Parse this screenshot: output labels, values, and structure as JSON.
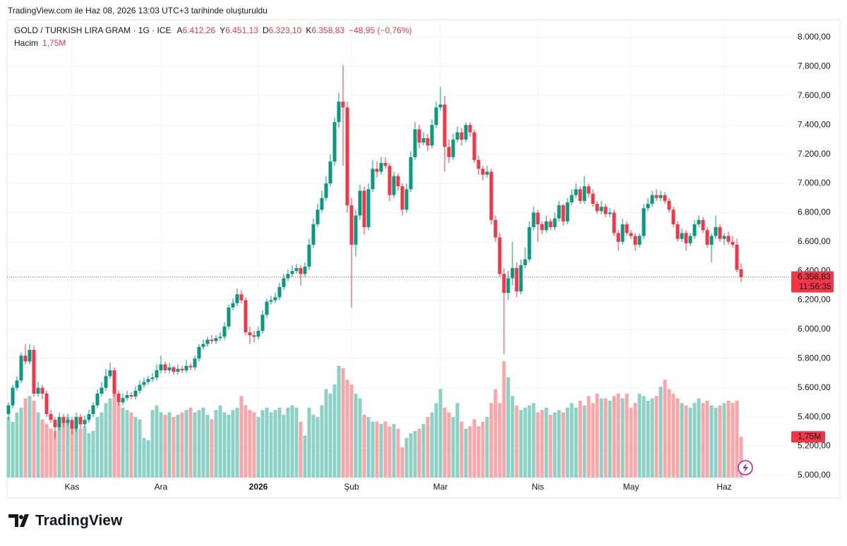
{
  "caption": "TradingView.com ile Haz 08, 2026 13:03 UTC+3 tarihinde oluşturuldu",
  "brand": "TradingView",
  "chart_data": {
    "type": "candlestick",
    "title": "GOLD / TURKISH LIRA GRAM · 1G · ICE",
    "legend": {
      "open_prefix": "A",
      "open": "6.412,26",
      "high_prefix": "Y",
      "high": "6.451,13",
      "low_prefix": "D",
      "low": "6.323,10",
      "close_prefix": "K",
      "close": "6.358,83",
      "change": "−48,95 (−0,76%)"
    },
    "volume_name": "Hacim",
    "volume_label": "1,75M",
    "countdown": "11:56:35",
    "up_color": "#089981",
    "down_color": "#f23645",
    "volume_up_color": "#8dd0c6",
    "volume_down_color": "#f7a7a9",
    "ylim": [
      4985,
      8121
    ],
    "yticks": [
      {
        "value": 5000,
        "label": "5.000,00"
      },
      {
        "value": 5200,
        "label": "5.200,00"
      },
      {
        "value": 5400,
        "label": "5.400,00"
      },
      {
        "value": 5600,
        "label": "5.600,00"
      },
      {
        "value": 5800,
        "label": "5.800,00"
      },
      {
        "value": 6000,
        "label": "6.000,00"
      },
      {
        "value": 6200,
        "label": "6.200,00"
      },
      {
        "value": 6400,
        "label": "6.400,00"
      },
      {
        "value": 6600,
        "label": "6.600,00"
      },
      {
        "value": 6800,
        "label": "6.800,00"
      },
      {
        "value": 7000,
        "label": "7.000,00"
      },
      {
        "value": 7200,
        "label": "7.200,00"
      },
      {
        "value": 7400,
        "label": "7.400,00"
      },
      {
        "value": 7600,
        "label": "7.600,00"
      },
      {
        "value": 7800,
        "label": "7.800,00"
      },
      {
        "value": 8000,
        "label": "8.000,00"
      }
    ],
    "volume_ylim": [
      0,
      5.3
    ],
    "grid": true,
    "categories": [
      null,
      null,
      null,
      null,
      null,
      null,
      null,
      null,
      null,
      null,
      null,
      null,
      null,
      null,
      null,
      "Kas",
      null,
      null,
      null,
      null,
      null,
      null,
      null,
      null,
      null,
      null,
      null,
      null,
      null,
      null,
      null,
      null,
      null,
      null,
      null,
      null,
      "Ara",
      null,
      null,
      null,
      null,
      null,
      null,
      null,
      null,
      null,
      null,
      null,
      null,
      null,
      null,
      null,
      null,
      null,
      null,
      null,
      null,
      null,
      null,
      "2026",
      null,
      null,
      null,
      null,
      null,
      null,
      null,
      null,
      null,
      null,
      null,
      null,
      null,
      null,
      null,
      null,
      null,
      null,
      null,
      null,
      null,
      "Şub",
      null,
      null,
      null,
      null,
      null,
      null,
      null,
      null,
      null,
      null,
      null,
      null,
      null,
      null,
      null,
      null,
      null,
      null,
      null,
      null,
      "Mar",
      null,
      null,
      null,
      null,
      null,
      null,
      null,
      null,
      null,
      null,
      null,
      null,
      null,
      null,
      null,
      null,
      null,
      null,
      null,
      null,
      null,
      null,
      "Nis",
      null,
      null,
      null,
      null,
      null,
      null,
      null,
      null,
      null,
      null,
      null,
      null,
      null,
      null,
      null,
      null,
      null,
      null,
      null,
      null,
      null,
      "May",
      null,
      null,
      null,
      null,
      null,
      null,
      null,
      null,
      null,
      null,
      null,
      null,
      null,
      null,
      null,
      null,
      null,
      null,
      null,
      null,
      null,
      "Haz",
      null,
      null,
      null,
      null
    ],
    "candles": [
      [
        5420,
        5500,
        5380,
        5480
      ],
      [
        5480,
        5620,
        5460,
        5600
      ],
      [
        5600,
        5680,
        5580,
        5650
      ],
      [
        5650,
        5840,
        5630,
        5820
      ],
      [
        5820,
        5900,
        5760,
        5780
      ],
      [
        5780,
        5900,
        5760,
        5860
      ],
      [
        5860,
        5890,
        5540,
        5560
      ],
      [
        5560,
        5640,
        5540,
        5600
      ],
      [
        5600,
        5620,
        5520,
        5560
      ],
      [
        5560,
        5580,
        5400,
        5420
      ],
      [
        5420,
        5450,
        5360,
        5380
      ],
      [
        5380,
        5400,
        5250,
        5330
      ],
      [
        5330,
        5430,
        5310,
        5400
      ],
      [
        5400,
        5420,
        5330,
        5360
      ],
      [
        5360,
        5420,
        5340,
        5380
      ],
      [
        5380,
        5400,
        5280,
        5320
      ],
      [
        5320,
        5430,
        5300,
        5400
      ],
      [
        5400,
        5420,
        5320,
        5350
      ],
      [
        5350,
        5410,
        5330,
        5380
      ],
      [
        5380,
        5450,
        5360,
        5420
      ],
      [
        5420,
        5500,
        5400,
        5480
      ],
      [
        5480,
        5590,
        5460,
        5560
      ],
      [
        5560,
        5640,
        5540,
        5600
      ],
      [
        5600,
        5730,
        5580,
        5680
      ],
      [
        5680,
        5770,
        5660,
        5720
      ],
      [
        5720,
        5740,
        5540,
        5560
      ],
      [
        5560,
        5580,
        5480,
        5500
      ],
      [
        5500,
        5560,
        5480,
        5530
      ],
      [
        5530,
        5580,
        5510,
        5550
      ],
      [
        5550,
        5570,
        5520,
        5540
      ],
      [
        5540,
        5610,
        5520,
        5580
      ],
      [
        5580,
        5650,
        5560,
        5620
      ],
      [
        5620,
        5670,
        5600,
        5640
      ],
      [
        5640,
        5680,
        5620,
        5660
      ],
      [
        5660,
        5700,
        5640,
        5670
      ],
      [
        5670,
        5760,
        5650,
        5720
      ],
      [
        5720,
        5820,
        5700,
        5760
      ],
      [
        5760,
        5780,
        5700,
        5720
      ],
      [
        5720,
        5770,
        5700,
        5740
      ],
      [
        5740,
        5750,
        5690,
        5710
      ],
      [
        5710,
        5760,
        5690,
        5730
      ],
      [
        5730,
        5750,
        5700,
        5720
      ],
      [
        5720,
        5790,
        5700,
        5750
      ],
      [
        5750,
        5770,
        5720,
        5740
      ],
      [
        5740,
        5820,
        5720,
        5800
      ],
      [
        5800,
        5900,
        5780,
        5880
      ],
      [
        5880,
        5930,
        5860,
        5900
      ],
      [
        5900,
        5950,
        5880,
        5930
      ],
      [
        5930,
        5960,
        5900,
        5920
      ],
      [
        5920,
        5960,
        5900,
        5940
      ],
      [
        5940,
        5980,
        5920,
        5950
      ],
      [
        5950,
        6050,
        5930,
        6020
      ],
      [
        6020,
        6170,
        6000,
        6150
      ],
      [
        6150,
        6210,
        6130,
        6180
      ],
      [
        6180,
        6280,
        6160,
        6240
      ],
      [
        6240,
        6270,
        6180,
        6200
      ],
      [
        6200,
        6220,
        5960,
        5980
      ],
      [
        5980,
        6020,
        5900,
        5960
      ],
      [
        5960,
        5990,
        5910,
        5950
      ],
      [
        5950,
        6020,
        5930,
        5990
      ],
      [
        5990,
        6130,
        5970,
        6100
      ],
      [
        6100,
        6210,
        6080,
        6190
      ],
      [
        6190,
        6230,
        6170,
        6200
      ],
      [
        6200,
        6250,
        6180,
        6220
      ],
      [
        6220,
        6320,
        6200,
        6290
      ],
      [
        6290,
        6380,
        6270,
        6350
      ],
      [
        6350,
        6410,
        6330,
        6380
      ],
      [
        6380,
        6440,
        6360,
        6400
      ],
      [
        6400,
        6450,
        6380,
        6420
      ],
      [
        6420,
        6440,
        6300,
        6380
      ],
      [
        6380,
        6460,
        6360,
        6430
      ],
      [
        6430,
        6620,
        6410,
        6580
      ],
      [
        6580,
        6760,
        6560,
        6720
      ],
      [
        6720,
        6860,
        6700,
        6820
      ],
      [
        6820,
        6950,
        6800,
        6900
      ],
      [
        6900,
        7050,
        6880,
        7000
      ],
      [
        7000,
        7200,
        6980,
        7150
      ],
      [
        7150,
        7450,
        7120,
        7420
      ],
      [
        7420,
        7620,
        7380,
        7560
      ],
      [
        7560,
        7810,
        7120,
        7520
      ],
      [
        7520,
        7560,
        6800,
        6850
      ],
      [
        6850,
        6900,
        6150,
        6580
      ],
      [
        6580,
        6820,
        6500,
        6780
      ],
      [
        6780,
        6990,
        6750,
        6950
      ],
      [
        6950,
        6980,
        6650,
        6700
      ],
      [
        6700,
        7000,
        6680,
        6960
      ],
      [
        6960,
        7160,
        6940,
        7100
      ],
      [
        7100,
        7150,
        7040,
        7080
      ],
      [
        7080,
        7180,
        7060,
        7140
      ],
      [
        7140,
        7180,
        7100,
        7120
      ],
      [
        7120,
        7140,
        6880,
        6920
      ],
      [
        6920,
        7080,
        6900,
        7050
      ],
      [
        7050,
        7070,
        6950,
        6980
      ],
      [
        6980,
        7000,
        6780,
        6820
      ],
      [
        6820,
        7000,
        6800,
        6960
      ],
      [
        6960,
        7220,
        6940,
        7180
      ],
      [
        7180,
        7420,
        7160,
        7370
      ],
      [
        7370,
        7400,
        7240,
        7280
      ],
      [
        7280,
        7350,
        7260,
        7310
      ],
      [
        7310,
        7340,
        7220,
        7260
      ],
      [
        7260,
        7440,
        7240,
        7400
      ],
      [
        7400,
        7560,
        7380,
        7520
      ],
      [
        7520,
        7660,
        7500,
        7540
      ],
      [
        7540,
        7600,
        7080,
        7250
      ],
      [
        7250,
        7300,
        7140,
        7180
      ],
      [
        7180,
        7340,
        7160,
        7300
      ],
      [
        7300,
        7390,
        7280,
        7350
      ],
      [
        7350,
        7380,
        7260,
        7300
      ],
      [
        7300,
        7420,
        7280,
        7400
      ],
      [
        7400,
        7420,
        7320,
        7350
      ],
      [
        7350,
        7370,
        7140,
        7160
      ],
      [
        7160,
        7190,
        7060,
        7100
      ],
      [
        7100,
        7120,
        7020,
        7060
      ],
      [
        7060,
        7120,
        7040,
        7080
      ],
      [
        7080,
        7100,
        6720,
        6750
      ],
      [
        6750,
        6780,
        6600,
        6630
      ],
      [
        6630,
        6660,
        6360,
        6380
      ],
      [
        6380,
        6420,
        5830,
        6250
      ],
      [
        6250,
        6400,
        6200,
        6350
      ],
      [
        6350,
        6600,
        6300,
        6420
      ],
      [
        6420,
        6460,
        6220,
        6260
      ],
      [
        6260,
        6480,
        6240,
        6440
      ],
      [
        6440,
        6560,
        6420,
        6480
      ],
      [
        6480,
        6740,
        6460,
        6700
      ],
      [
        6700,
        6840,
        6680,
        6800
      ],
      [
        6800,
        6820,
        6600,
        6720
      ],
      [
        6720,
        6740,
        6650,
        6680
      ],
      [
        6680,
        6780,
        6660,
        6740
      ],
      [
        6740,
        6760,
        6680,
        6700
      ],
      [
        6700,
        6800,
        6680,
        6760
      ],
      [
        6760,
        6880,
        6740,
        6850
      ],
      [
        6850,
        6860,
        6710,
        6740
      ],
      [
        6740,
        6900,
        6720,
        6870
      ],
      [
        6870,
        6960,
        6850,
        6920
      ],
      [
        6920,
        7000,
        6900,
        6960
      ],
      [
        6960,
        6980,
        6860,
        6880
      ],
      [
        6880,
        7050,
        6860,
        6980
      ],
      [
        6980,
        7000,
        6900,
        6930
      ],
      [
        6930,
        6960,
        6840,
        6860
      ],
      [
        6860,
        6880,
        6790,
        6810
      ],
      [
        6810,
        6880,
        6790,
        6840
      ],
      [
        6840,
        6860,
        6770,
        6790
      ],
      [
        6790,
        6830,
        6770,
        6800
      ],
      [
        6800,
        6820,
        6640,
        6660
      ],
      [
        6660,
        6680,
        6540,
        6600
      ],
      [
        6600,
        6760,
        6580,
        6720
      ],
      [
        6720,
        6740,
        6640,
        6660
      ],
      [
        6660,
        6680,
        6620,
        6640
      ],
      [
        6640,
        6660,
        6540,
        6580
      ],
      [
        6580,
        6660,
        6560,
        6640
      ],
      [
        6640,
        6860,
        6620,
        6830
      ],
      [
        6830,
        6900,
        6810,
        6860
      ],
      [
        6860,
        6950,
        6840,
        6920
      ],
      [
        6920,
        6960,
        6880,
        6900
      ],
      [
        6900,
        6950,
        6880,
        6920
      ],
      [
        6920,
        6940,
        6860,
        6880
      ],
      [
        6880,
        6900,
        6800,
        6820
      ],
      [
        6820,
        6840,
        6700,
        6720
      ],
      [
        6720,
        6740,
        6600,
        6620
      ],
      [
        6620,
        6690,
        6600,
        6660
      ],
      [
        6660,
        6680,
        6540,
        6590
      ],
      [
        6590,
        6660,
        6570,
        6640
      ],
      [
        6640,
        6750,
        6620,
        6720
      ],
      [
        6720,
        6780,
        6700,
        6750
      ],
      [
        6750,
        6770,
        6660,
        6680
      ],
      [
        6680,
        6700,
        6560,
        6580
      ],
      [
        6580,
        6660,
        6460,
        6640
      ],
      [
        6640,
        6780,
        6620,
        6700
      ],
      [
        6700,
        6720,
        6600,
        6620
      ],
      [
        6620,
        6660,
        6580,
        6640
      ],
      [
        6640,
        6670,
        6580,
        6600
      ],
      [
        6600,
        6640,
        6560,
        6580
      ],
      [
        6580,
        6620,
        6390,
        6407.78
      ],
      [
        6412.26,
        6451.13,
        6323.1,
        6358.83
      ]
    ],
    "volume": [
      2.6,
      2.4,
      2.8,
      3.0,
      3.4,
      3.5,
      3.3,
      2.8,
      2.5,
      2.3,
      2.1,
      2.0,
      2.2,
      2.5,
      2.6,
      2.4,
      2.3,
      2.1,
      2.2,
      1.9,
      2.0,
      2.6,
      2.8,
      3.2,
      3.4,
      3.6,
      3.2,
      3.0,
      2.9,
      2.8,
      2.6,
      2.5,
      1.7,
      1.6,
      2.9,
      3.1,
      2.8,
      2.7,
      2.8,
      2.6,
      2.7,
      2.8,
      2.9,
      3.0,
      2.8,
      2.9,
      3.0,
      2.7,
      2.5,
      2.9,
      3.1,
      2.8,
      2.7,
      2.9,
      3.0,
      3.5,
      3.1,
      2.9,
      2.8,
      2.6,
      2.9,
      3.0,
      2.8,
      2.9,
      3.0,
      2.7,
      3.0,
      3.1,
      3.0,
      2.4,
      1.8,
      3.0,
      2.7,
      2.6,
      3.1,
      3.8,
      3.6,
      4.0,
      4.8,
      4.7,
      4.2,
      4.0,
      3.6,
      3.4,
      2.7,
      2.6,
      2.4,
      2.4,
      2.3,
      2.4,
      2.2,
      2.3,
      2.1,
      1.3,
      1.7,
      1.9,
      2.0,
      2.1,
      2.3,
      2.6,
      2.8,
      3.2,
      3.8,
      3.0,
      2.8,
      2.6,
      3.2,
      2.4,
      2.1,
      2.2,
      2.5,
      2.2,
      2.4,
      2.6,
      3.2,
      3.8,
      3.2,
      5.0,
      4.3,
      3.5,
      3.1,
      2.9,
      3.0,
      3.1,
      3.2,
      2.8,
      2.9,
      3.0,
      2.7,
      2.8,
      2.9,
      2.8,
      3.0,
      3.2,
      3.0,
      3.3,
      3.1,
      3.5,
      3.2,
      3.6,
      3.4,
      3.4,
      3.3,
      3.5,
      3.6,
      3.4,
      3.6,
      3.0,
      3.2,
      3.6,
      3.5,
      3.3,
      3.4,
      3.5,
      3.9,
      4.2,
      3.8,
      3.6,
      3.4,
      3.2,
      3.1,
      3.0,
      3.2,
      3.4,
      3.2,
      3.3,
      3.1,
      3.0,
      3.1,
      3.2,
      3.3,
      3.2,
      3.3,
      1.75
    ]
  }
}
